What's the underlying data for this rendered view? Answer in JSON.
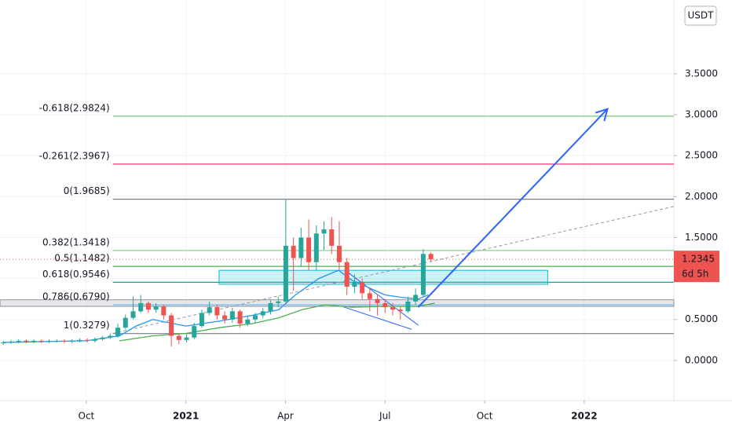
{
  "chart_data": {
    "type": "candlestick",
    "currency": "USDT",
    "x": [
      -5.5,
      -5.27,
      -5.04,
      -4.81,
      -4.58,
      -4.35,
      -4.12,
      -3.89,
      -3.66,
      -3.43,
      -3.2,
      -2.97,
      -2.74,
      -2.51,
      -2.28,
      -2.05,
      -1.82,
      -1.59,
      -1.36,
      -1.13,
      -0.9,
      -0.67,
      -0.44,
      -0.21,
      0.02,
      0.25,
      0.48,
      0.71,
      0.94,
      1.17,
      1.4,
      1.63,
      1.86,
      2.09,
      2.32,
      2.55,
      2.78,
      3.01,
      3.24,
      3.47,
      3.7,
      3.93,
      4.16,
      4.39,
      4.62,
      4.85,
      5.08,
      5.31,
      5.54,
      5.77,
      6.0,
      6.23,
      6.46,
      6.69,
      6.92,
      7.15,
      7.38
    ],
    "open": [
      0.21,
      0.22,
      0.23,
      0.24,
      0.23,
      0.24,
      0.23,
      0.24,
      0.24,
      0.23,
      0.24,
      0.25,
      0.24,
      0.26,
      0.28,
      0.3,
      0.4,
      0.52,
      0.6,
      0.7,
      0.62,
      0.66,
      0.55,
      0.3,
      0.25,
      0.28,
      0.42,
      0.58,
      0.65,
      0.55,
      0.5,
      0.6,
      0.45,
      0.5,
      0.55,
      0.6,
      0.7,
      0.72,
      1.4,
      1.25,
      1.5,
      1.2,
      1.55,
      1.6,
      1.4,
      1.2,
      0.9,
      0.95,
      0.82,
      0.75,
      0.7,
      0.65,
      0.62,
      0.6,
      0.72,
      0.8,
      1.3
    ],
    "high": [
      0.24,
      0.25,
      0.26,
      0.26,
      0.26,
      0.26,
      0.26,
      0.26,
      0.26,
      0.26,
      0.27,
      0.27,
      0.28,
      0.3,
      0.33,
      0.45,
      0.56,
      0.78,
      0.8,
      0.72,
      0.7,
      0.68,
      0.58,
      0.33,
      0.32,
      0.46,
      0.62,
      0.72,
      0.68,
      0.6,
      0.64,
      0.62,
      0.55,
      0.58,
      0.64,
      0.74,
      0.78,
      1.96,
      1.5,
      1.62,
      1.72,
      1.65,
      1.7,
      1.75,
      1.7,
      1.25,
      1.05,
      1.0,
      0.88,
      0.8,
      0.75,
      0.7,
      0.66,
      0.78,
      0.88,
      1.36,
      1.32
    ],
    "low": [
      0.19,
      0.2,
      0.21,
      0.21,
      0.21,
      0.21,
      0.21,
      0.22,
      0.21,
      0.21,
      0.22,
      0.22,
      0.22,
      0.24,
      0.26,
      0.28,
      0.38,
      0.5,
      0.58,
      0.58,
      0.58,
      0.5,
      0.17,
      0.2,
      0.22,
      0.26,
      0.4,
      0.55,
      0.5,
      0.45,
      0.46,
      0.4,
      0.42,
      0.46,
      0.52,
      0.56,
      0.65,
      0.7,
      0.85,
      1.15,
      1.1,
      1.1,
      1.35,
      1.3,
      1.1,
      0.8,
      0.82,
      0.75,
      0.6,
      0.55,
      0.58,
      0.55,
      0.5,
      0.58,
      0.68,
      0.78,
      1.2
    ],
    "close": [
      0.22,
      0.23,
      0.24,
      0.23,
      0.24,
      0.23,
      0.24,
      0.24,
      0.23,
      0.24,
      0.25,
      0.24,
      0.26,
      0.28,
      0.3,
      0.4,
      0.52,
      0.6,
      0.7,
      0.62,
      0.66,
      0.55,
      0.3,
      0.25,
      0.28,
      0.42,
      0.58,
      0.65,
      0.55,
      0.5,
      0.6,
      0.45,
      0.5,
      0.55,
      0.6,
      0.7,
      0.72,
      1.4,
      1.25,
      1.5,
      1.2,
      1.55,
      1.6,
      1.4,
      1.2,
      0.9,
      0.95,
      0.82,
      0.75,
      0.7,
      0.65,
      0.62,
      0.6,
      0.72,
      0.8,
      1.3,
      1.2345
    ],
    "up_color": "#26a69a",
    "down_color": "#ef5350",
    "moving_averages": [
      {
        "color": "#2196f3",
        "x": [
          -5.5,
          -3,
          -2,
          -1.5,
          -1,
          0,
          1,
          2,
          2.8,
          3.3,
          4,
          4.6,
          5,
          6,
          6.5,
          7,
          7.3
        ],
        "values": [
          0.22,
          0.24,
          0.3,
          0.42,
          0.5,
          0.42,
          0.48,
          0.55,
          0.62,
          0.8,
          1.0,
          1.1,
          0.98,
          0.8,
          0.77,
          0.75,
          0.8
        ]
      },
      {
        "color": "#4caf50",
        "x": [
          -2,
          -1,
          0,
          1,
          2,
          2.8,
          3.5,
          4.2,
          5,
          6,
          7,
          7.5
        ],
        "values": [
          0.24,
          0.3,
          0.33,
          0.4,
          0.45,
          0.52,
          0.62,
          0.68,
          0.65,
          0.66,
          0.66,
          0.7
        ]
      }
    ],
    "fib_levels": [
      {
        "label": "-0.618(2.9824)",
        "value": 2.9824,
        "color": "#81c784"
      },
      {
        "label": "-0.261(2.3967)",
        "value": 2.3967,
        "color": "#e91e63"
      },
      {
        "label": "0(1.9685)",
        "value": 1.9685,
        "color": "#787b86"
      },
      {
        "label": "0.382(1.3418)",
        "value": 1.3418,
        "color": "#81c784"
      },
      {
        "label": "0.5(1.1482)",
        "value": 1.1482,
        "color": "#4caf50"
      },
      {
        "label": "0.618(0.9546)",
        "value": 0.9546,
        "color": "#009688"
      },
      {
        "label": "0.786(0.6790)",
        "value": 0.679,
        "color": "#64b5f6"
      },
      {
        "label": "1(0.3279)",
        "value": 0.3279,
        "color": "#787b86"
      }
    ],
    "fib_start_x": -2.2,
    "support_zone": [
      0.66,
      0.74
    ],
    "box_zone": {
      "x": [
        1.0,
        10.9
      ],
      "y": [
        0.93,
        1.1
      ]
    },
    "trend_line": {
      "x": [
        -2.2,
        14.7
      ],
      "y": [
        0.33,
        1.88
      ]
    },
    "wedge_upper": {
      "x": [
        4.8,
        7.0
      ],
      "y": [
        1.1,
        0.43
      ]
    },
    "wedge_lower": {
      "x": [
        4.7,
        6.8
      ],
      "y": [
        0.66,
        0.38
      ]
    },
    "projection": {
      "x": [
        7.0,
        12.7
      ],
      "y": [
        0.65,
        3.07
      ]
    },
    "last_price": 1.2345,
    "countdown": "6d 5h",
    "xlim": [
      -5.6,
      14.7
    ],
    "ylim": [
      -0.49,
      4.4
    ],
    "xticks": [
      {
        "value": -3,
        "label": "Oct"
      },
      {
        "value": 0,
        "label": "2021"
      },
      {
        "value": 3,
        "label": "Apr"
      },
      {
        "value": 6,
        "label": "Jul"
      },
      {
        "value": 9,
        "label": "Oct"
      },
      {
        "value": 12,
        "label": "2022"
      }
    ],
    "yticks": [
      {
        "value": 0,
        "label": "0.0000"
      },
      {
        "value": 0.5,
        "label": "0.5000"
      },
      {
        "value": 1,
        "label": "1.0000"
      },
      {
        "value": 1.5,
        "label": "1.5000"
      },
      {
        "value": 2,
        "label": "2.0000"
      },
      {
        "value": 2.5,
        "label": "2.5000"
      },
      {
        "value": 3,
        "label": "3.0000"
      },
      {
        "value": 3.5,
        "label": "3.5000"
      }
    ]
  }
}
